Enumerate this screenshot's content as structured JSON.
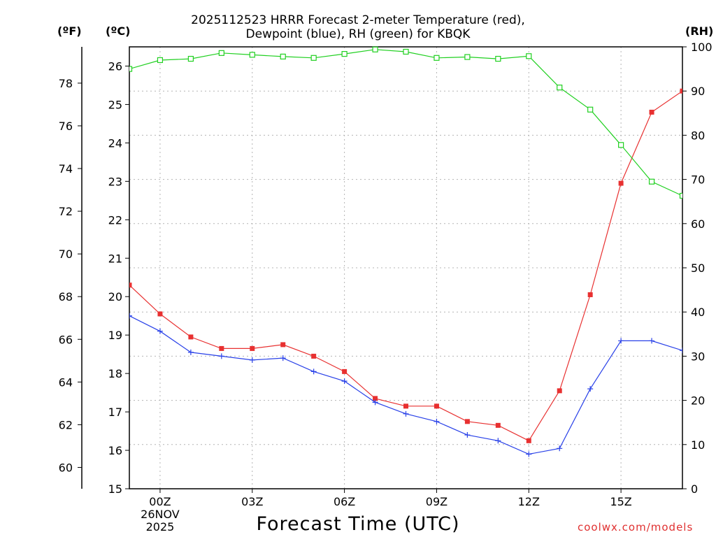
{
  "chart_data": {
    "type": "line",
    "title_line1": "2025112523 HRRR Forecast 2-meter Temperature (red),",
    "title_line2": "Dewpoint (blue), RH (green) for KBQK",
    "xlabel": "Forecast Time (UTC)",
    "unit_f": "(ºF)",
    "unit_c": "(ºC)",
    "unit_rh": "(RH)",
    "credit": "coolwx.com/models",
    "x": [
      -1,
      0,
      1,
      2,
      3,
      4,
      5,
      6,
      7,
      8,
      9,
      10,
      11,
      12,
      13,
      14,
      15,
      16,
      17
    ],
    "x_range": [
      -1,
      17
    ],
    "x_ticks": [
      {
        "x": 0,
        "label": "00Z",
        "sub1": "26NOV",
        "sub2": "2025"
      },
      {
        "x": 3,
        "label": "03Z"
      },
      {
        "x": 6,
        "label": "06Z"
      },
      {
        "x": 9,
        "label": "09Z"
      },
      {
        "x": 12,
        "label": "12Z"
      },
      {
        "x": 15,
        "label": "15Z"
      }
    ],
    "ylim_c": [
      15,
      26.5
    ],
    "yticks_c": [
      "15",
      "16",
      "17",
      "18",
      "19",
      "20",
      "21",
      "22",
      "23",
      "24",
      "25",
      "26"
    ],
    "yticks_f": [
      "60",
      "62",
      "64",
      "66",
      "68",
      "70",
      "72",
      "74",
      "76",
      "78"
    ],
    "ylim_rh": [
      0,
      100
    ],
    "yticks_rh": [
      "0",
      "10",
      "20",
      "30",
      "40",
      "50",
      "60",
      "70",
      "80",
      "90",
      "100"
    ],
    "series": [
      {
        "name": "Temperature",
        "units": "C",
        "color": "#e83030",
        "marker": "filled-square",
        "values": [
          20.3,
          19.55,
          18.95,
          18.65,
          18.65,
          18.75,
          18.45,
          18.05,
          17.35,
          17.15,
          17.15,
          16.75,
          16.65,
          16.25,
          17.55,
          20.05,
          22.95,
          24.8,
          25.35
        ]
      },
      {
        "name": "Dewpoint",
        "units": "C",
        "color": "#2840e8",
        "marker": "plus",
        "values": [
          19.5,
          19.1,
          18.55,
          18.45,
          18.35,
          18.4,
          18.05,
          17.8,
          17.25,
          16.95,
          16.75,
          16.4,
          16.25,
          15.9,
          16.05,
          17.6,
          18.85,
          18.85,
          18.6
        ]
      },
      {
        "name": "RH",
        "units": "%",
        "color": "#20d020",
        "marker": "open-square",
        "values": [
          95,
          97,
          97.3,
          98.6,
          98.2,
          97.8,
          97.5,
          98.4,
          99.4,
          98.9,
          97.5,
          97.7,
          97.3,
          97.9,
          90.8,
          85.8,
          77.8,
          69.5,
          66.3
        ]
      }
    ]
  }
}
